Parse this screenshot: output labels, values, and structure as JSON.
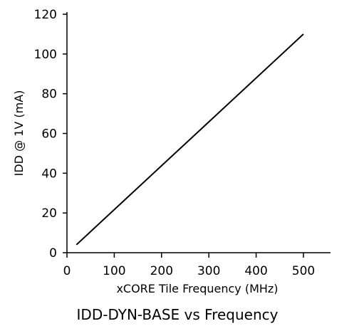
{
  "chart_data": {
    "type": "line",
    "caption": "IDD-DYN-BASE vs Frequency",
    "xlabel": "xCORE Tile Frequency (MHz)",
    "ylabel": "IDD @ 1V (mA)",
    "xlim": [
      0,
      560
    ],
    "ylim": [
      0,
      120
    ],
    "x_ticks": [
      "0",
      "100",
      "200",
      "300",
      "400",
      "500"
    ],
    "y_ticks": [
      "0",
      "20",
      "40",
      "60",
      "80",
      "100",
      "120"
    ],
    "grid": false,
    "legend": "none",
    "series": [
      {
        "x": [
          20,
          500
        ],
        "y": [
          4,
          110
        ],
        "color": "#000000"
      }
    ]
  }
}
